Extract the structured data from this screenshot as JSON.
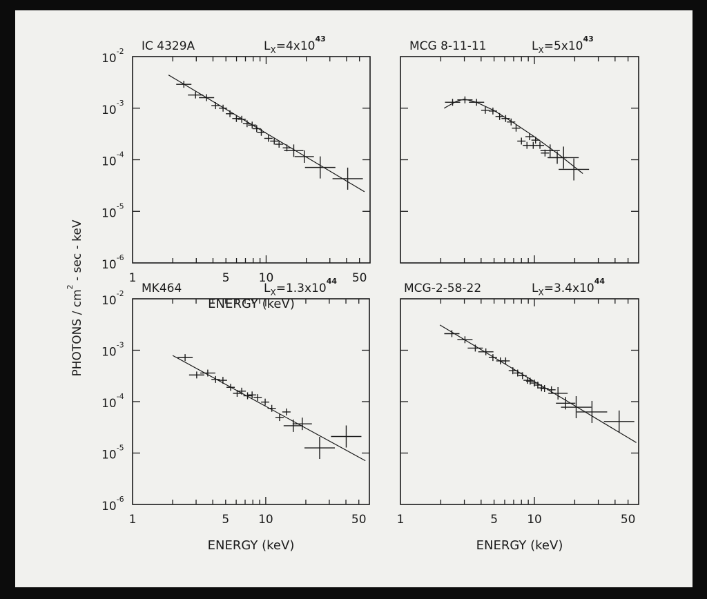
{
  "figure": {
    "ylabel": "PHOTONS / cm² - sec - keV",
    "ylabel_main": "PHOTONS / cm",
    "ylabel_sup": "2",
    "ylabel_rest": " - sec - keV",
    "xlabel": "ENERGY (keV)",
    "colors": {
      "background": "#f1f1ee",
      "ink": "#1a1a1a",
      "frame": "#0c0c0c"
    }
  },
  "chart_data": [
    {
      "type": "scatter",
      "title": "IC 4329A",
      "luminosity": {
        "symbol": "L",
        "subscript": "X",
        "text": "=4x10",
        "exponent": "43"
      },
      "x_scale": "log",
      "y_scale": "log",
      "xlim": [
        1,
        60
      ],
      "ylim": [
        1e-06,
        0.01
      ],
      "xticks": [
        "1",
        "5",
        "10",
        "50"
      ],
      "yticks": [
        {
          "base": "10",
          "exp": "-2"
        },
        {
          "base": "10",
          "exp": "-3"
        },
        {
          "base": "10",
          "exp": "-4"
        },
        {
          "base": "10",
          "exp": "-5"
        },
        {
          "base": "10",
          "exp": "-6"
        }
      ],
      "points": [
        [
          2.42,
          0.0029
        ],
        [
          2.96,
          0.0018
        ],
        [
          3.58,
          0.0016
        ],
        [
          4.18,
          0.00112
        ],
        [
          4.76,
          0.001
        ],
        [
          5.36,
          0.00078
        ],
        [
          5.99,
          0.00063
        ],
        [
          6.57,
          0.00061
        ],
        [
          7.2,
          0.0005
        ],
        [
          7.86,
          0.00047
        ],
        [
          8.5,
          0.0004
        ],
        [
          9.2,
          0.00034
        ],
        [
          10.4,
          0.00026
        ],
        [
          11.5,
          0.00023
        ],
        [
          12.5,
          0.0002
        ],
        [
          14.3,
          0.00017
        ],
        [
          16.1,
          0.00015
        ],
        [
          19.3,
          0.000115
        ],
        [
          25.4,
          7.1e-05
        ],
        [
          40.8,
          4.3e-05
        ]
      ],
      "model": [
        [
          1.86,
          0.0044
        ],
        [
          54.5,
          2.4e-05
        ]
      ]
    },
    {
      "type": "scatter",
      "title": "MCG 8-11-11",
      "luminosity": {
        "symbol": "L",
        "subscript": "X",
        "text": "=5x10",
        "exponent": "43"
      },
      "x_scale": "log",
      "y_scale": "log",
      "xlim": [
        1,
        60
      ],
      "ylim": [
        1e-06,
        0.01
      ],
      "xticks": [],
      "yticks": [],
      "points": [
        [
          2.45,
          0.0013
        ],
        [
          3.03,
          0.00145
        ],
        [
          3.7,
          0.0013
        ],
        [
          4.3,
          0.00091
        ],
        [
          4.9,
          0.00088
        ],
        [
          5.5,
          0.00069
        ],
        [
          6.1,
          0.00063
        ],
        [
          6.7,
          0.00054
        ],
        [
          7.3,
          0.00041
        ],
        [
          8.0,
          0.00023
        ],
        [
          8.8,
          0.00019
        ],
        [
          9.2,
          0.00028
        ],
        [
          9.8,
          0.00019
        ],
        [
          10.2,
          0.00024
        ],
        [
          11.0,
          0.00019
        ],
        [
          12.0,
          0.000135
        ],
        [
          13.1,
          0.00015
        ],
        [
          14.8,
          0.00011
        ],
        [
          16.5,
          0.00011
        ],
        [
          19.7,
          6.5e-05
        ]
      ],
      "model": [
        [
          2.12,
          0.001
        ],
        [
          2.6,
          0.00135
        ],
        [
          3.0,
          0.0015
        ],
        [
          3.7,
          0.0013
        ],
        [
          5,
          0.0009
        ],
        [
          7,
          0.00052
        ],
        [
          10,
          0.00028
        ],
        [
          15,
          0.00013
        ],
        [
          23,
          5.4e-05
        ]
      ]
    },
    {
      "type": "scatter",
      "title": "MK464",
      "luminosity": {
        "symbol": "L",
        "subscript": "X",
        "text": "=1.3x10",
        "exponent": "44"
      },
      "x_scale": "log",
      "y_scale": "log",
      "xlim": [
        1,
        60
      ],
      "ylim": [
        1e-06,
        0.01
      ],
      "xticks": [
        "1",
        "5",
        "10",
        "50"
      ],
      "yticks": [
        {
          "base": "10",
          "exp": "-2"
        },
        {
          "base": "10",
          "exp": "-3"
        },
        {
          "base": "10",
          "exp": "-4"
        },
        {
          "base": "10",
          "exp": "-5"
        },
        {
          "base": "10",
          "exp": "-6"
        }
      ],
      "points": [
        [
          2.48,
          0.00072
        ],
        [
          3.03,
          0.00033
        ],
        [
          3.67,
          0.00036
        ],
        [
          4.2,
          0.00027
        ],
        [
          4.77,
          0.00026
        ],
        [
          5.45,
          0.00019
        ],
        [
          6.1,
          0.000145
        ],
        [
          6.6,
          0.00016
        ],
        [
          7.3,
          0.00013
        ],
        [
          7.9,
          0.000135
        ],
        [
          8.7,
          0.00012
        ],
        [
          9.9,
          9.8e-05
        ],
        [
          11.1,
          7.4e-05
        ],
        [
          12.7,
          4.9e-05
        ],
        [
          14.3,
          6.3e-05
        ],
        [
          16.1,
          3.4e-05
        ],
        [
          18.8,
          3.7e-05
        ],
        [
          25.4,
          1.26e-05
        ],
        [
          40.2,
          2.1e-05
        ]
      ],
      "model": [
        [
          2.0,
          0.00079
        ],
        [
          56,
          7.1e-06
        ]
      ]
    },
    {
      "type": "scatter",
      "title": "MCG-2-58-22",
      "luminosity": {
        "symbol": "L",
        "subscript": "X",
        "text": "=3.4x10",
        "exponent": "44"
      },
      "x_scale": "log",
      "y_scale": "log",
      "xlim": [
        1,
        60
      ],
      "ylim": [
        1e-06,
        0.01
      ],
      "xticks": [
        "1",
        "5",
        "10",
        "50"
      ],
      "yticks": [],
      "points": [
        [
          2.42,
          0.0021
        ],
        [
          3.03,
          0.0016
        ],
        [
          3.62,
          0.0011
        ],
        [
          4.34,
          0.00093
        ],
        [
          4.9,
          0.00072
        ],
        [
          5.57,
          0.00062
        ],
        [
          6.1,
          0.00062
        ],
        [
          6.9,
          0.0004
        ],
        [
          7.5,
          0.00036
        ],
        [
          8.15,
          0.00032
        ],
        [
          8.9,
          0.00026
        ],
        [
          9.3,
          0.00025
        ],
        [
          10.0,
          0.00023
        ],
        [
          10.6,
          0.00021
        ],
        [
          11.3,
          0.000185
        ],
        [
          11.9,
          0.00018
        ],
        [
          13.4,
          0.00017
        ],
        [
          15.0,
          0.000145
        ],
        [
          17.1,
          9.3e-05
        ],
        [
          20.5,
          7.8e-05
        ],
        [
          26.9,
          6.3e-05
        ],
        [
          42.9,
          4.1e-05
        ]
      ],
      "model": [
        [
          1.97,
          0.0031
        ],
        [
          57.6,
          1.6e-05
        ]
      ]
    }
  ]
}
